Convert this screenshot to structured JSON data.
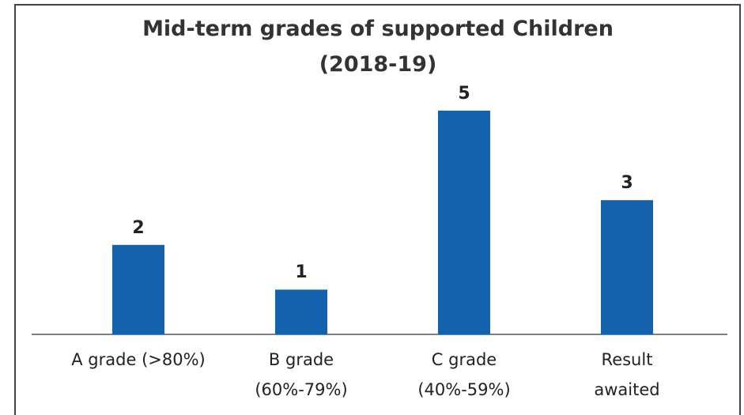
{
  "chart_data": {
    "type": "bar",
    "title": "Mid-term grades of supported Children (2018-19)",
    "categories": [
      "A grade (>80%)",
      "B grade (60%-79%)",
      "C grade (40%-59%)",
      "Result awaited"
    ],
    "values": [
      2,
      1,
      5,
      3
    ],
    "color": "#1262ae"
  }
}
